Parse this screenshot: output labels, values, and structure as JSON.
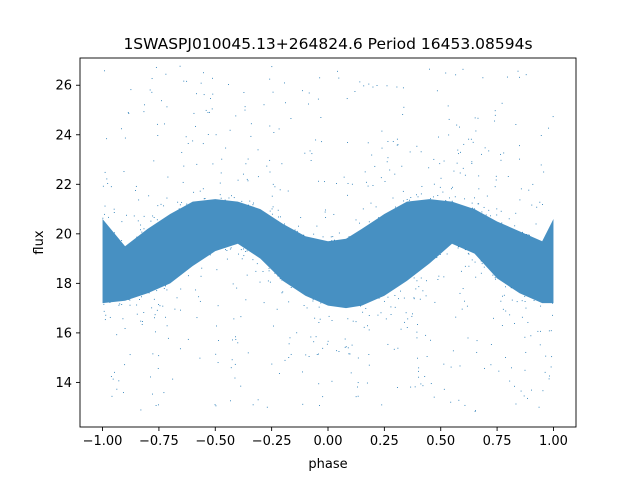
{
  "chart_data": {
    "type": "scatter",
    "title": "1SWASPJ010045.13+264824.6 Period 16453.08594s",
    "xlabel": "phase",
    "ylabel": "flux",
    "xlim": [
      -1.1,
      1.1
    ],
    "ylim": [
      12.2,
      27.1
    ],
    "xticks": [
      -1.0,
      -0.75,
      -0.5,
      -0.25,
      0.0,
      0.25,
      0.5,
      0.75,
      1.0
    ],
    "xtick_labels": [
      "−1.00",
      "−0.75",
      "−0.50",
      "−0.25",
      "0.00",
      "0.25",
      "0.50",
      "0.75",
      "1.00"
    ],
    "yticks": [
      14,
      16,
      18,
      20,
      22,
      24,
      26
    ],
    "ytick_labels": [
      "14",
      "16",
      "18",
      "20",
      "22",
      "24",
      "26"
    ],
    "grid": false,
    "marker_color": "#1f77b4",
    "phase_range": [
      -1.0,
      1.0
    ],
    "light_curve": {
      "phase": [
        -1.0,
        -0.9,
        -0.8,
        -0.7,
        -0.6,
        -0.5,
        -0.4,
        -0.3,
        -0.2,
        -0.1,
        0.0,
        0.08,
        0.15,
        0.25,
        0.35,
        0.45,
        0.55,
        0.65,
        0.75,
        0.85,
        0.95,
        1.0
      ],
      "flux_upper": [
        20.6,
        19.5,
        20.2,
        20.8,
        21.3,
        21.4,
        21.3,
        21.0,
        20.4,
        19.9,
        19.7,
        19.8,
        20.2,
        20.8,
        21.3,
        21.4,
        21.3,
        21.0,
        20.5,
        20.1,
        19.7,
        20.6
      ],
      "flux_lower": [
        17.2,
        17.3,
        17.6,
        18.0,
        18.7,
        19.3,
        19.6,
        19.0,
        18.1,
        17.5,
        17.1,
        17.0,
        17.1,
        17.5,
        18.1,
        18.8,
        19.6,
        19.2,
        18.2,
        17.6,
        17.2,
        17.2
      ]
    }
  }
}
